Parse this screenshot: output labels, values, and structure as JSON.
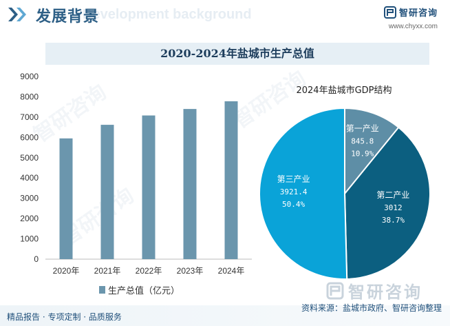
{
  "header": {
    "title": "发展背景",
    "ghost_text": "Development background",
    "brand_name": "智研咨询",
    "brand_url": "www.chyxx.com"
  },
  "chart_data": [
    {
      "type": "bar",
      "title": "2020-2024年盐城市生产总值",
      "categories": [
        "2020年",
        "2021年",
        "2022年",
        "2023年",
        "2024年"
      ],
      "series": [
        {
          "name": "生产总值（亿元）",
          "values": [
            5950,
            6620,
            7080,
            7400,
            7780
          ]
        }
      ],
      "ylim": [
        0,
        9000
      ],
      "yticks": [
        "0",
        "1000",
        "2000",
        "3000",
        "4000",
        "5000",
        "6000",
        "7000",
        "8000",
        "9000"
      ],
      "colors": {
        "bar": "#6b96ad"
      },
      "legend": "bottom"
    },
    {
      "type": "pie",
      "title": "2024年盐城市GDP结构",
      "slices": [
        {
          "name": "第一产业",
          "value": 845.8,
          "value_label": "845.8",
          "percent": "10.9%",
          "color": "#5e8ea6"
        },
        {
          "name": "第二产业",
          "value": 3012,
          "value_label": "3012",
          "percent": "38.7%",
          "color": "#0c5f80"
        },
        {
          "name": "第三产业",
          "value": 3921.4,
          "value_label": "3921.4",
          "percent": "50.4%",
          "color": "#0aa3d8"
        }
      ]
    }
  ],
  "watermark": "智研咨询",
  "bottom_logo": "智研咨询",
  "footer": {
    "left": "精品报告 · 专项定制 · 品质服务",
    "right": "资料来源：盐城市政府、智研咨询整理"
  }
}
